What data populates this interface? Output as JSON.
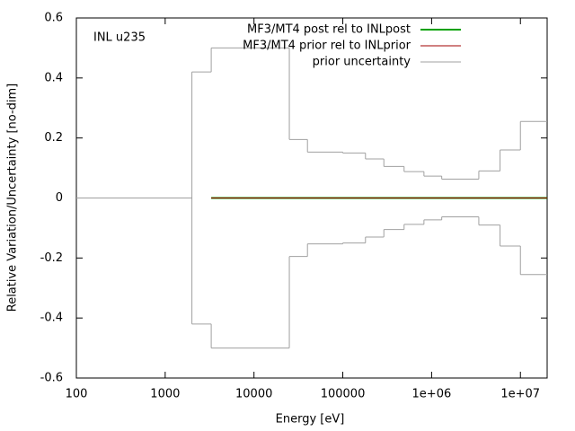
{
  "chart_data": {
    "type": "step",
    "annotation": "INL u235",
    "xlabel": "Energy [eV]",
    "ylabel": "Relative Variation/Uncertainty [no-dim]",
    "xscale": "log",
    "xlim": [
      100,
      20000000
    ],
    "ylim": [
      -0.6,
      0.6
    ],
    "xticks": [
      100,
      1000,
      10000,
      100000,
      {
        "value": 1000000,
        "label": "1e+06"
      },
      {
        "value": 10000000,
        "label": "1e+07"
      }
    ],
    "yticks": [
      -0.6,
      -0.4,
      -0.2,
      0,
      0.2,
      0.4,
      0.6
    ],
    "legend": "top-right",
    "series": [
      {
        "name": "MF3/MT4 post rel to INLpost",
        "color": "#00a000",
        "x": [
          3300,
          20000000
        ],
        "values": [
          0,
          0
        ]
      },
      {
        "name": "MF3/MT4 prior rel to INLprior",
        "color": "#a00000",
        "x": [
          3300,
          20000000
        ],
        "values": [
          0,
          0
        ]
      },
      {
        "name": "prior uncertainty",
        "color": "#a0a0a0",
        "x": [
          100,
          2000,
          3300,
          25000,
          40000,
          100000,
          180000,
          290000,
          490000,
          820000,
          1300000,
          3400000,
          5900000,
          10000000,
          20000000
        ],
        "upper": [
          0,
          0.42,
          0.5,
          0.195,
          0.153,
          0.15,
          0.13,
          0.105,
          0.088,
          0.073,
          0.063,
          0.09,
          0.16,
          0.255
        ],
        "lower": [
          0,
          -0.42,
          -0.5,
          -0.195,
          -0.153,
          -0.15,
          -0.13,
          -0.105,
          -0.088,
          -0.073,
          -0.063,
          -0.09,
          -0.16,
          -0.255
        ]
      }
    ]
  }
}
